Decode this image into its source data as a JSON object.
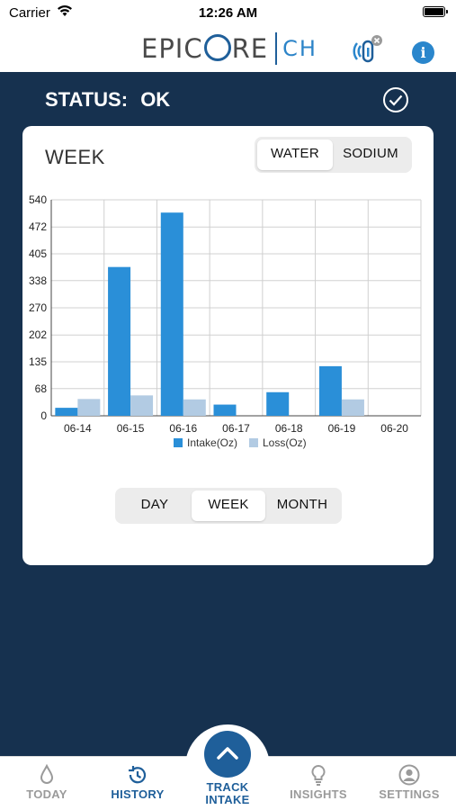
{
  "status_bar": {
    "carrier": "Carrier",
    "time": "12:26 AM"
  },
  "header": {
    "logo_brand_left": "EPIC",
    "logo_brand_right": "RE",
    "logo_sub": "CH",
    "info_label": "i"
  },
  "status": {
    "label": "STATUS:",
    "value": "OK"
  },
  "card": {
    "title": "WEEK",
    "metric_tabs": [
      {
        "label": "WATER",
        "active": true
      },
      {
        "label": "SODIUM",
        "active": false
      }
    ],
    "range_tabs": [
      {
        "label": "DAY",
        "active": false
      },
      {
        "label": "WEEK",
        "active": true
      },
      {
        "label": "MONTH",
        "active": false
      }
    ]
  },
  "chart_data": {
    "type": "bar",
    "categories": [
      "06-14",
      "06-15",
      "06-16",
      "06-17",
      "06-18",
      "06-19",
      "06-20"
    ],
    "series": [
      {
        "name": "Intake(Oz)",
        "values": [
          20,
          372,
          508,
          28,
          59,
          124,
          0
        ],
        "color": "#2a8fd8"
      },
      {
        "name": "Loss(Oz)",
        "values": [
          42,
          51,
          41,
          0,
          0,
          41,
          0
        ],
        "color": "#b2cbe3"
      }
    ],
    "yticks": [
      "0",
      "68",
      "135",
      "202",
      "270",
      "338",
      "405",
      "472",
      "540"
    ],
    "ylim": [
      0,
      540
    ],
    "grid": true,
    "legend": "bottom"
  },
  "tab_bar": {
    "tabs": [
      {
        "label": "TODAY",
        "icon": "drop-icon",
        "active": false
      },
      {
        "label": "HISTORY",
        "icon": "history-icon",
        "active": true
      },
      {
        "label": "INSIGHTS",
        "icon": "lightbulb-icon",
        "active": false
      },
      {
        "label": "SETTINGS",
        "icon": "user-icon",
        "active": false
      }
    ],
    "track_label_1": "TRACK",
    "track_label_2": "INTAKE"
  },
  "colors": {
    "navy": "#16314f",
    "brand_blue": "#1f5f9a",
    "accent": "#2a86cc"
  }
}
